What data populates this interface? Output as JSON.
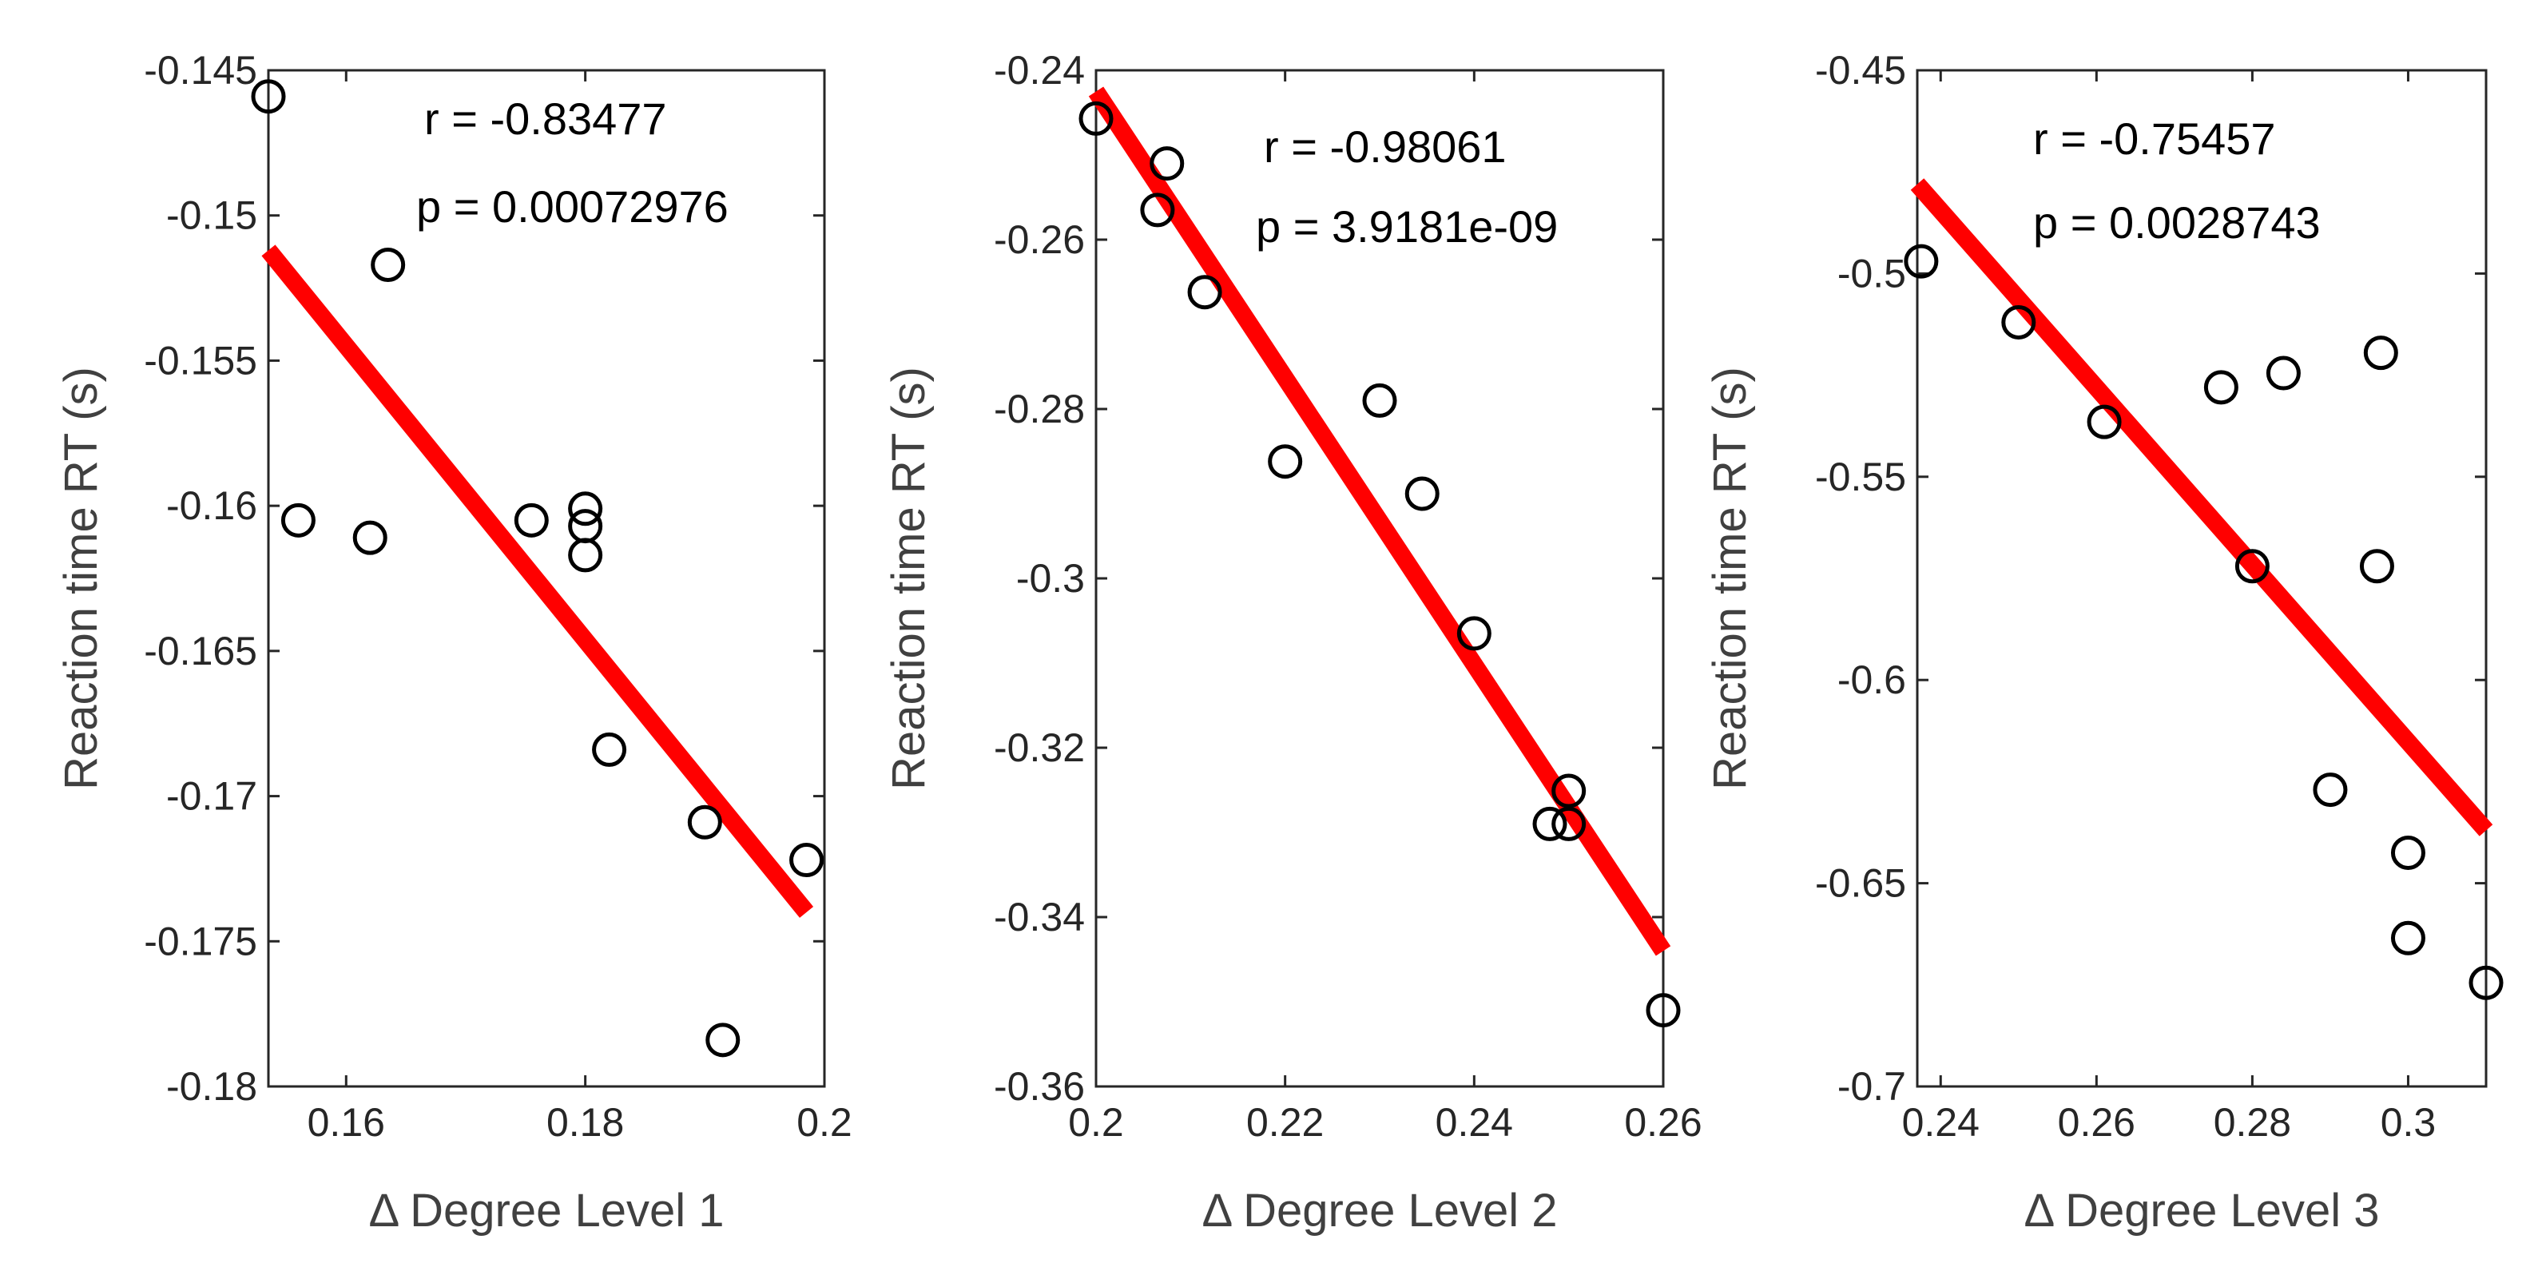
{
  "colors": {
    "fit_line": "#ff0000",
    "points": "#000000",
    "axes": "#262626",
    "labels": "#404040"
  },
  "chart_data": [
    {
      "type": "scatter",
      "xlabel": "Δ Degree  Level 1",
      "ylabel": "Reaction time RT (s)",
      "xlim": [
        0.1535,
        0.2
      ],
      "ylim": [
        -0.18,
        -0.145
      ],
      "xticks": [
        0.16,
        0.18,
        0.2
      ],
      "xtick_labels": [
        "0.16",
        "0.18",
        "0.2"
      ],
      "yticks": [
        -0.18,
        -0.175,
        -0.17,
        -0.165,
        -0.16,
        -0.155,
        -0.15,
        -0.145
      ],
      "ytick_labels": [
        "-0.18",
        "-0.175",
        "-0.17",
        "-0.165",
        "-0.16",
        "-0.155",
        "-0.15",
        "-0.145"
      ],
      "points": [
        {
          "x": 0.1535,
          "y": -0.1459
        },
        {
          "x": 0.1635,
          "y": -0.1517
        },
        {
          "x": 0.156,
          "y": -0.1605
        },
        {
          "x": 0.162,
          "y": -0.1611
        },
        {
          "x": 0.1755,
          "y": -0.1605
        },
        {
          "x": 0.18,
          "y": -0.1601
        },
        {
          "x": 0.18,
          "y": -0.1607
        },
        {
          "x": 0.18,
          "y": -0.1617
        },
        {
          "x": 0.182,
          "y": -0.1684
        },
        {
          "x": 0.19,
          "y": -0.1709
        },
        {
          "x": 0.1915,
          "y": -0.1784
        },
        {
          "x": 0.1985,
          "y": -0.1722
        }
      ],
      "fit_line": {
        "x": [
          0.1535,
          0.1985
        ],
        "y": [
          -0.1512,
          -0.174
        ]
      },
      "annotation_r": "r = -0.83477",
      "annotation_p": "p = 0.00072976"
    },
    {
      "type": "scatter",
      "xlabel": "Δ Degree  Level 2",
      "ylabel": "Reaction time RT (s)",
      "xlim": [
        0.2,
        0.26
      ],
      "ylim": [
        -0.36,
        -0.24
      ],
      "xticks": [
        0.2,
        0.22,
        0.24,
        0.26
      ],
      "xtick_labels": [
        "0.2",
        "0.22",
        "0.24",
        "0.26"
      ],
      "yticks": [
        -0.36,
        -0.34,
        -0.32,
        -0.3,
        -0.28,
        -0.26,
        -0.24
      ],
      "ytick_labels": [
        "-0.36",
        "-0.34",
        "-0.32",
        "-0.3",
        "-0.28",
        "-0.26",
        "-0.24"
      ],
      "points": [
        {
          "x": 0.2,
          "y": -0.2457
        },
        {
          "x": 0.2065,
          "y": -0.2565
        },
        {
          "x": 0.2075,
          "y": -0.251
        },
        {
          "x": 0.2115,
          "y": -0.2662
        },
        {
          "x": 0.22,
          "y": -0.2862
        },
        {
          "x": 0.23,
          "y": -0.279
        },
        {
          "x": 0.2345,
          "y": -0.29
        },
        {
          "x": 0.24,
          "y": -0.3065
        },
        {
          "x": 0.248,
          "y": -0.329
        },
        {
          "x": 0.25,
          "y": -0.329
        },
        {
          "x": 0.25,
          "y": -0.3251
        },
        {
          "x": 0.26,
          "y": -0.351
        }
      ],
      "fit_line": {
        "x": [
          0.2,
          0.26
        ],
        "y": [
          -0.2425,
          -0.344
        ]
      },
      "annotation_r": "r = -0.98061",
      "annotation_p": "p = 3.9181e-09"
    },
    {
      "type": "scatter",
      "xlabel": "Δ Degree  Level 3",
      "ylabel": "Reaction time RT (s)",
      "xlim": [
        0.237,
        0.31
      ],
      "ylim": [
        -0.7,
        -0.45
      ],
      "xticks": [
        0.24,
        0.26,
        0.28,
        0.3
      ],
      "xtick_labels": [
        "0.24",
        "0.26",
        "0.28",
        "0.3"
      ],
      "yticks": [
        -0.7,
        -0.65,
        -0.6,
        -0.55,
        -0.5,
        -0.45
      ],
      "ytick_labels": [
        "-0.7",
        "-0.65",
        "-0.6",
        "-0.55",
        "-0.5",
        "-0.45"
      ],
      "points": [
        {
          "x": 0.2375,
          "y": -0.497
        },
        {
          "x": 0.25,
          "y": -0.512
        },
        {
          "x": 0.261,
          "y": -0.5365
        },
        {
          "x": 0.276,
          "y": -0.528
        },
        {
          "x": 0.284,
          "y": -0.5245
        },
        {
          "x": 0.2965,
          "y": -0.5195
        },
        {
          "x": 0.28,
          "y": -0.572
        },
        {
          "x": 0.296,
          "y": -0.572
        },
        {
          "x": 0.29,
          "y": -0.627
        },
        {
          "x": 0.3,
          "y": -0.6425
        },
        {
          "x": 0.3,
          "y": -0.6635
        },
        {
          "x": 0.31,
          "y": -0.6745
        }
      ],
      "fit_line": {
        "x": [
          0.237,
          0.31
        ],
        "y": [
          -0.478,
          -0.637
        ]
      },
      "annotation_r": "r = -0.75457",
      "annotation_p": "p = 0.0028743"
    }
  ]
}
